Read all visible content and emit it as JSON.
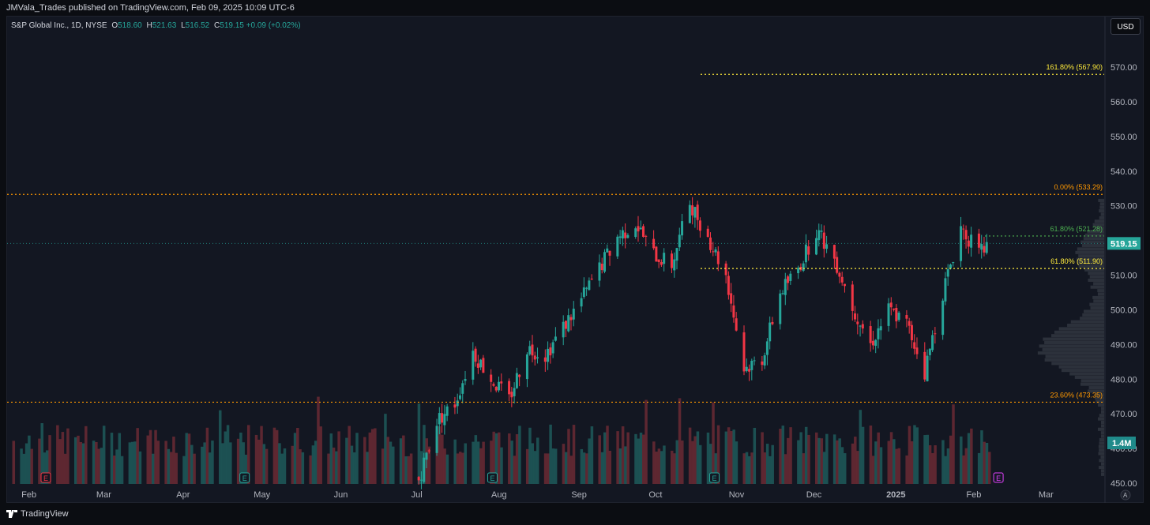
{
  "header": {
    "published_text": "JMVala_Trades published on TradingView.com, Feb 09, 2025 10:09 UTC-6"
  },
  "legend": {
    "symbol": "S&P Global Inc., 1D, NYSE",
    "open_label": "O",
    "open": "518.60",
    "high_label": "H",
    "high": "521.63",
    "low_label": "L",
    "low": "516.52",
    "close_label": "C",
    "close": "519.15",
    "change": "+0.09 (+0.02%)"
  },
  "currency_button": "USD",
  "price_axis": {
    "ticks": [
      "570.00",
      "560.00",
      "550.00",
      "540.00",
      "530.00",
      "520.00",
      "510.00",
      "500.00",
      "490.00",
      "480.00",
      "470.00",
      "460.00",
      "450.00"
    ],
    "last_price_label": "519.15",
    "volume_label": "1.4M"
  },
  "time_axis": {
    "labels": [
      "Feb",
      "Mar",
      "Apr",
      "May",
      "Jun",
      "Jul",
      "Aug",
      "Sep",
      "Oct",
      "Nov",
      "Dec",
      "2025",
      "Feb",
      "Mar"
    ]
  },
  "fib_levels": [
    {
      "label": "161.80% (567.90)",
      "price": 567.9,
      "color": "#ffeb3b",
      "style": "dotted"
    },
    {
      "label": "0.00% (533.29)",
      "price": 533.29,
      "color": "#ff9800",
      "style": "dotted"
    },
    {
      "label": "61.80% (521.28)",
      "price": 521.28,
      "color": "#4caf50",
      "style": "dotted"
    },
    {
      "label": "61.80% (511.90)",
      "price": 511.9,
      "color": "#ffeb3b",
      "style": "dotted"
    },
    {
      "label": "23.60% (473.35)",
      "price": 473.35,
      "color": "#ff9800",
      "style": "dotted"
    }
  ],
  "earnings_markers": [
    {
      "month_pos": "early-Feb",
      "label": "E",
      "color": "#f23645"
    },
    {
      "month_pos": "late-Apr",
      "label": "E",
      "color": "#26a69a"
    },
    {
      "month_pos": "late-Jul",
      "label": "E",
      "color": "#26a69a"
    },
    {
      "month_pos": "late-Oct",
      "label": "E",
      "color": "#26a69a"
    },
    {
      "month_pos": "mid-Feb",
      "label": "E",
      "color": "#e040fb"
    }
  ],
  "colors": {
    "up": "#26a69a",
    "down": "#f23645",
    "bg": "#131722",
    "grid": "#1e222d"
  },
  "chart_data": {
    "type": "candlestick",
    "title": "S&P Global Inc., 1D, NYSE",
    "ylim": [
      450,
      575
    ],
    "grid": false,
    "x_range": [
      "2024-02",
      "2025-03"
    ],
    "fib_prices": [
      567.9,
      533.29,
      521.28,
      511.9,
      473.35
    ],
    "close_path": [
      [
        "2024-07-01",
        451
      ],
      [
        "2024-07-08",
        468
      ],
      [
        "2024-07-15",
        473
      ],
      [
        "2024-07-22",
        488
      ],
      [
        "2024-07-29",
        480
      ],
      [
        "2024-08-05",
        474
      ],
      [
        "2024-08-12",
        489
      ],
      [
        "2024-08-19",
        487
      ],
      [
        "2024-08-26",
        495
      ],
      [
        "2024-09-02",
        503
      ],
      [
        "2024-09-09",
        512
      ],
      [
        "2024-09-16",
        521
      ],
      [
        "2024-09-23",
        525
      ],
      [
        "2024-09-30",
        516
      ],
      [
        "2024-10-07",
        513
      ],
      [
        "2024-10-14",
        531
      ],
      [
        "2024-10-21",
        521
      ],
      [
        "2024-10-28",
        510
      ],
      [
        "2024-11-04",
        483
      ],
      [
        "2024-11-11",
        486
      ],
      [
        "2024-11-18",
        505
      ],
      [
        "2024-11-25",
        512
      ],
      [
        "2024-12-02",
        523
      ],
      [
        "2024-12-09",
        515
      ],
      [
        "2024-12-16",
        501
      ],
      [
        "2024-12-23",
        490
      ],
      [
        "2024-12-30",
        500
      ],
      [
        "2025-01-06",
        496
      ],
      [
        "2025-01-13",
        482
      ],
      [
        "2025-01-20",
        505
      ],
      [
        "2025-01-27",
        524
      ],
      [
        "2025-02-03",
        516
      ],
      [
        "2025-02-07",
        519.15
      ]
    ]
  }
}
